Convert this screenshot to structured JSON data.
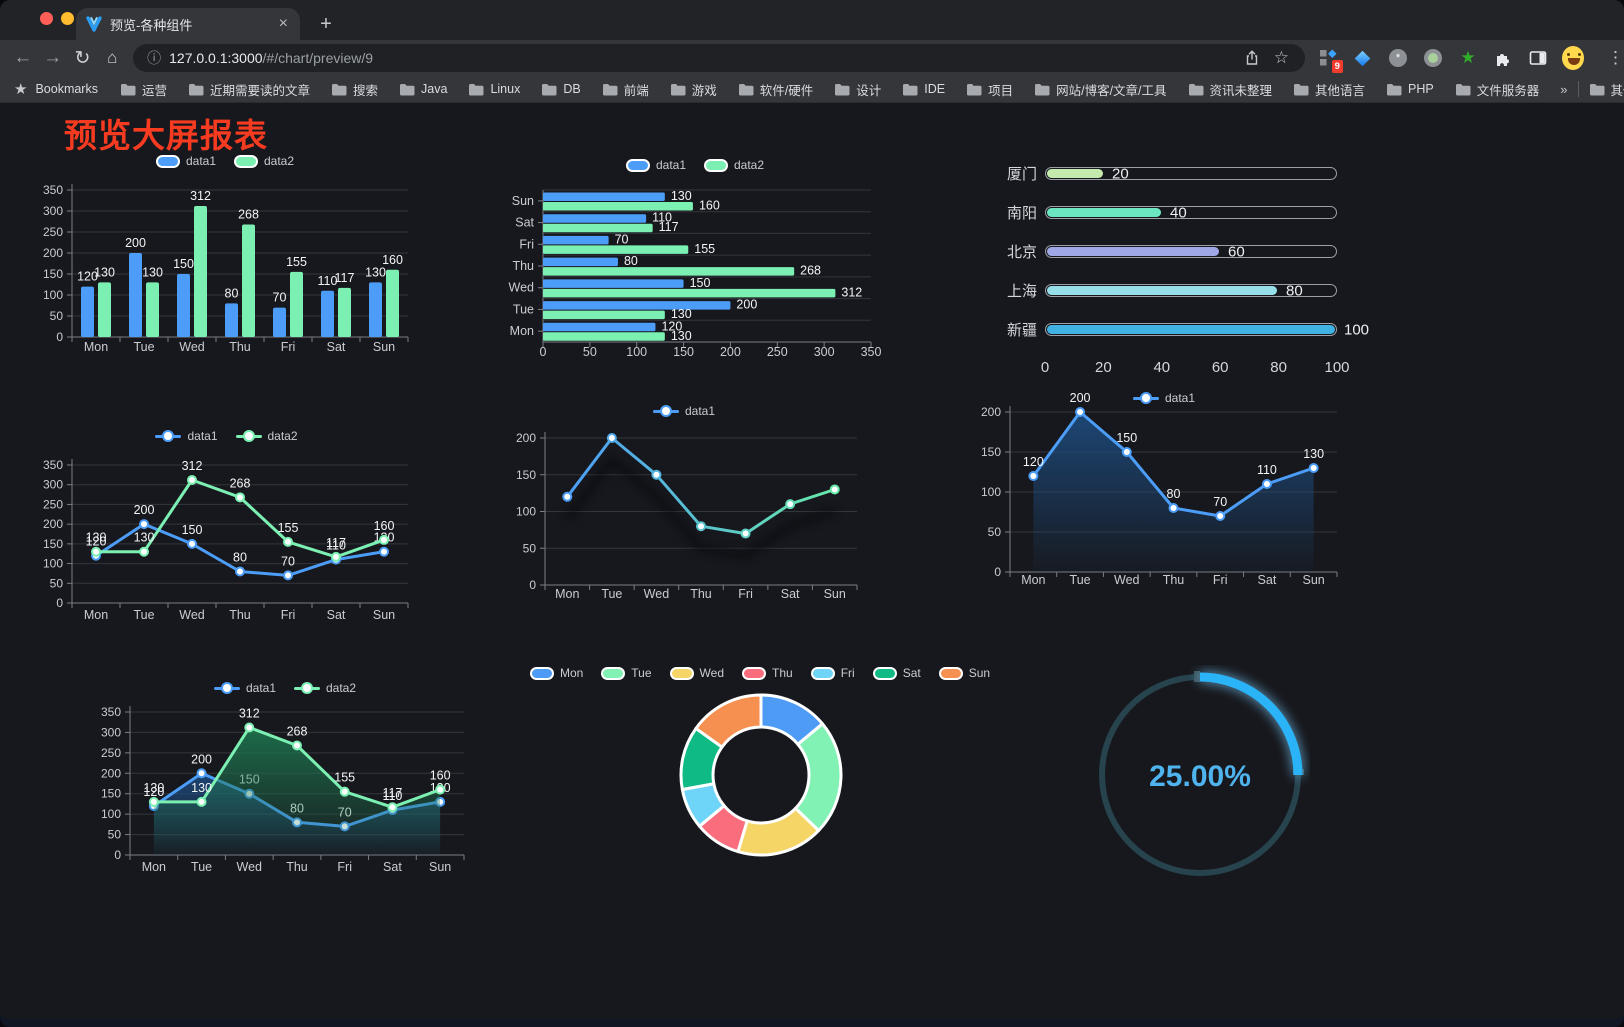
{
  "browser": {
    "tab": {
      "title": "预览-各种组件",
      "close_glyph": "×",
      "new_tab_glyph": "+"
    },
    "nav": {
      "back": "←",
      "forward": "→",
      "reload": "↻",
      "home": "⌂"
    },
    "url": {
      "info_glyph": "ⓘ",
      "host": "127.0.0.1:3000",
      "path": "/#/chart/preview/9"
    },
    "actions": {
      "star_glyph": "☆",
      "kebab_glyph": "⋮",
      "ext_badge": "9",
      "ext_asterisk": "*"
    },
    "bookmarks": {
      "star_glyph": "★",
      "label": "Bookmarks",
      "folders": [
        "运营",
        "近期需要读的文章",
        "搜索",
        "Java",
        "Linux",
        "DB",
        "前端",
        "游戏",
        "软件/硬件",
        "设计",
        "IDE",
        "项目",
        "网站/博客/文章/工具",
        "资讯未整理",
        "其他语言",
        "PHP",
        "文件服务器"
      ],
      "overflow_glyph": "»",
      "other_bookmarks": "其他书签"
    }
  },
  "page": {
    "title": "预览大屏报表",
    "title_color": "#f73b21"
  },
  "chart_data": [
    {
      "id": "grouped-bar",
      "type": "bar",
      "categories": [
        "Mon",
        "Tue",
        "Wed",
        "Thu",
        "Fri",
        "Sat",
        "Sun"
      ],
      "series": [
        {
          "name": "data1",
          "color": "#4c9df8",
          "values": [
            120,
            200,
            150,
            80,
            70,
            110,
            130
          ]
        },
        {
          "name": "data2",
          "color": "#7cf0b2",
          "values": [
            130,
            130,
            312,
            268,
            155,
            117,
            160
          ]
        }
      ],
      "ylim": [
        0,
        350
      ],
      "ytick_step": 50,
      "legend_position": "top",
      "grid": true
    },
    {
      "id": "horizontal-bar",
      "type": "bar",
      "orientation": "horizontal",
      "categories": [
        "Mon",
        "Tue",
        "Wed",
        "Thu",
        "Fri",
        "Sat",
        "Sun"
      ],
      "row_order_top_to_bottom": [
        "Sun",
        "Sat",
        "Fri",
        "Thu",
        "Wed",
        "Tue",
        "Mon"
      ],
      "series": [
        {
          "name": "data1",
          "color": "#4c9df8",
          "values": [
            120,
            200,
            150,
            80,
            70,
            110,
            130
          ]
        },
        {
          "name": "data2",
          "color": "#7cf0b2",
          "values": [
            130,
            130,
            312,
            268,
            155,
            117,
            160
          ]
        }
      ],
      "xlim": [
        0,
        350
      ],
      "xtick_step": 50,
      "legend_position": "top",
      "grid": true
    },
    {
      "id": "city-progress",
      "type": "bar",
      "style": "capsule-progress",
      "rows": [
        {
          "label": "厦门",
          "value": 20,
          "color": "#c4ebad"
        },
        {
          "label": "南阳",
          "value": 40,
          "color": "#6be6c1"
        },
        {
          "label": "北京",
          "value": 60,
          "color": "#a0a7e6"
        },
        {
          "label": "上海",
          "value": 80,
          "color": "#96dee8"
        },
        {
          "label": "新疆",
          "value": 100,
          "color": "#3fb1e3"
        }
      ],
      "xlim": [
        0,
        100
      ],
      "xticks": [
        0,
        20,
        40,
        60,
        80,
        100
      ]
    },
    {
      "id": "dual-line",
      "type": "line",
      "categories": [
        "Mon",
        "Tue",
        "Wed",
        "Thu",
        "Fri",
        "Sat",
        "Sun"
      ],
      "series": [
        {
          "name": "data1",
          "color": "#4c9df8",
          "values": [
            120,
            200,
            150,
            80,
            70,
            110,
            130
          ]
        },
        {
          "name": "data2",
          "color": "#7cf0b2",
          "values": [
            130,
            130,
            312,
            268,
            155,
            117,
            160
          ]
        }
      ],
      "ylim": [
        0,
        350
      ],
      "ytick_step": 50,
      "legend_position": "top",
      "grid": true
    },
    {
      "id": "gradient-line",
      "type": "line",
      "categories": [
        "Mon",
        "Tue",
        "Wed",
        "Thu",
        "Fri",
        "Sat",
        "Sun"
      ],
      "series": [
        {
          "name": "data1",
          "color_start": "#4c9df8",
          "color_end": "#67e8a7",
          "values": [
            120,
            200,
            150,
            80,
            70,
            110,
            130
          ]
        }
      ],
      "ylim": [
        0,
        200
      ],
      "ytick_step": 50,
      "value_labels": false,
      "legend_position": "top",
      "grid": true
    },
    {
      "id": "area-line-blue",
      "type": "area",
      "categories": [
        "Mon",
        "Tue",
        "Wed",
        "Thu",
        "Fri",
        "Sat",
        "Sun"
      ],
      "series": [
        {
          "name": "data1",
          "color": "#4c9df8",
          "values": [
            120,
            200,
            150,
            80,
            70,
            110,
            130
          ]
        }
      ],
      "ylim": [
        0,
        200
      ],
      "ytick_step": 50,
      "legend_position": "top",
      "grid": true
    },
    {
      "id": "dual-area-line",
      "type": "area",
      "categories": [
        "Mon",
        "Tue",
        "Wed",
        "Thu",
        "Fri",
        "Sat",
        "Sun"
      ],
      "series": [
        {
          "name": "data1",
          "color": "#4c9df8",
          "values": [
            120,
            200,
            150,
            80,
            70,
            110,
            130
          ]
        },
        {
          "name": "data2",
          "color": "#7cf0b2",
          "values": [
            130,
            130,
            312,
            268,
            155,
            117,
            160
          ]
        }
      ],
      "ylim": [
        0,
        350
      ],
      "ytick_step": 50,
      "legend_position": "top",
      "grid": true
    },
    {
      "id": "donut",
      "type": "pie",
      "inner_radius": true,
      "categories": [
        "Mon",
        "Tue",
        "Wed",
        "Thu",
        "Fri",
        "Sat",
        "Sun"
      ],
      "values": [
        120,
        200,
        150,
        80,
        70,
        110,
        130
      ],
      "colors": [
        "#4e9bf5",
        "#81f2b4",
        "#f5d565",
        "#fa6d7d",
        "#6fd5f8",
        "#10ba85",
        "#f59050"
      ],
      "legend_position": "top"
    },
    {
      "id": "gauge",
      "type": "gauge",
      "value": 25,
      "label": "25.00%",
      "color": "#2ab3f7",
      "track_color": "#27444e"
    }
  ]
}
